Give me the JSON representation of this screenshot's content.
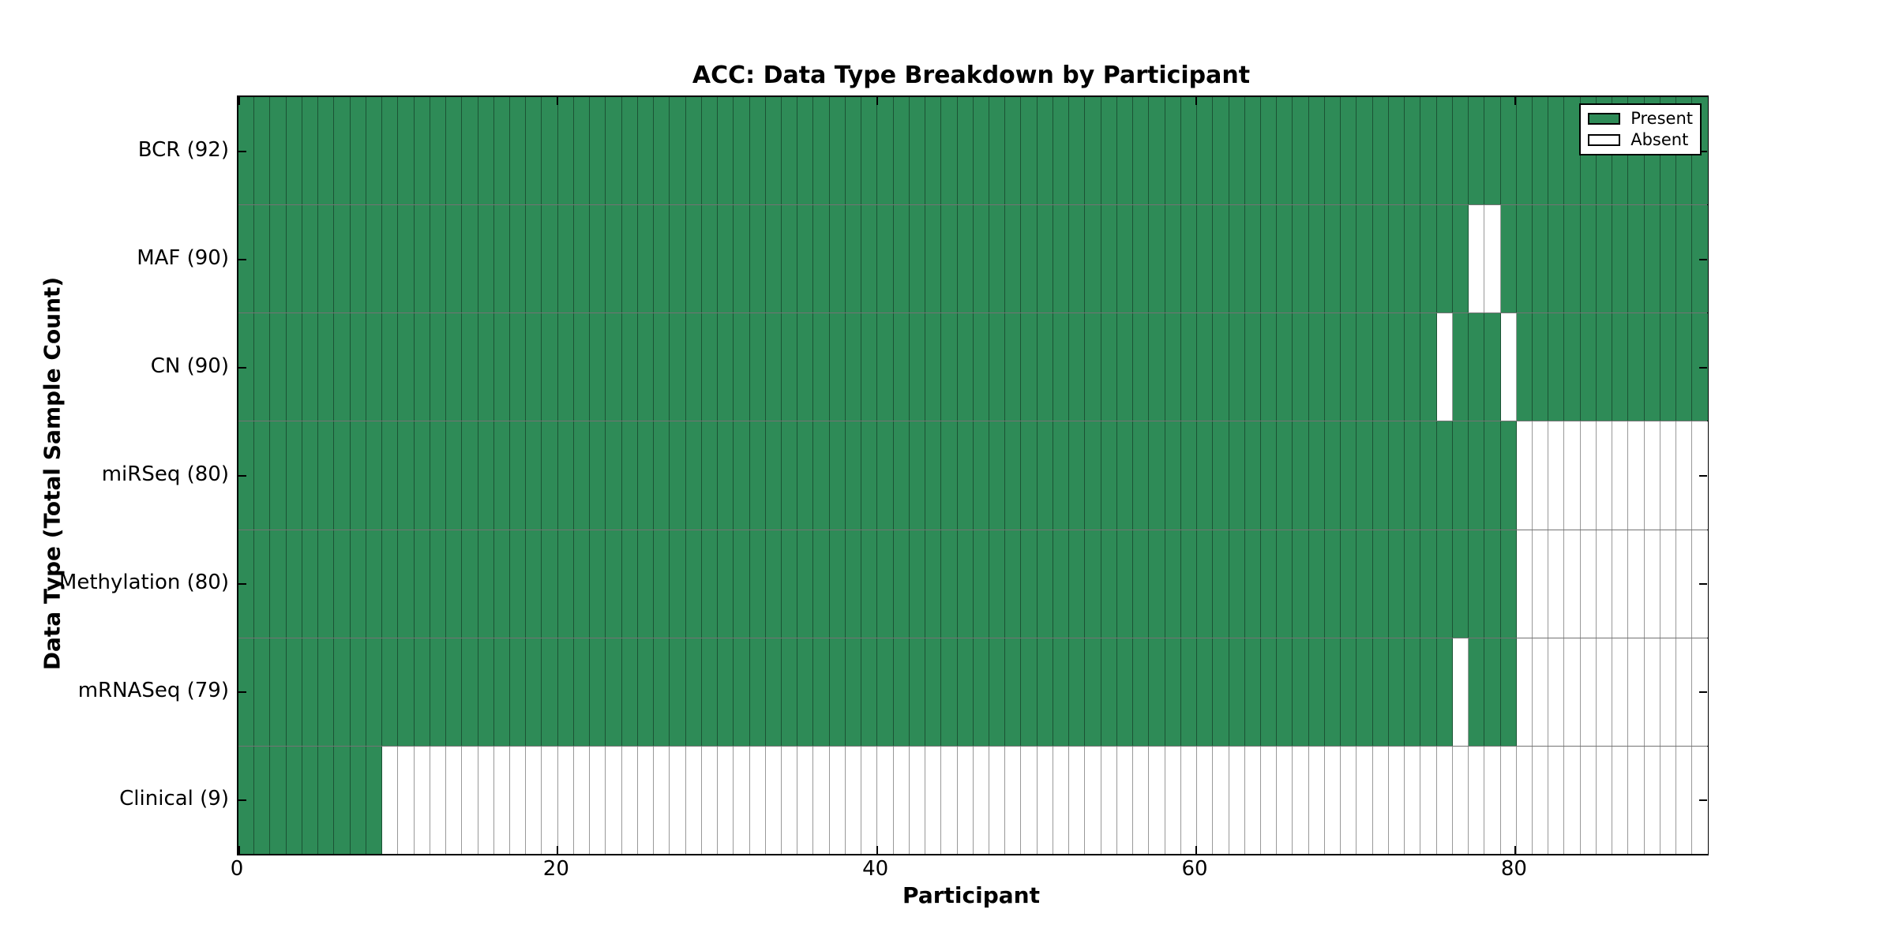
{
  "chart_data": {
    "type": "heatmap",
    "title": "ACC: Data Type Breakdown by Participant",
    "xlabel": "Participant",
    "ylabel": "Data Type (Total Sample Count)",
    "n_participants": 92,
    "x_ticks": [
      0,
      20,
      40,
      60,
      80
    ],
    "x_range": [
      0,
      92
    ],
    "grid": "off",
    "legend_position": "upper right",
    "colors": {
      "present": "#2e8b57",
      "absent": "#ffffff"
    },
    "legend": [
      {
        "label": "Present",
        "color": "#2e8b57"
      },
      {
        "label": "Absent",
        "color": "#ffffff"
      }
    ],
    "rows": [
      {
        "name": "BCR",
        "label": "BCR (92)",
        "total": 92,
        "absent_participants": []
      },
      {
        "name": "MAF",
        "label": "MAF (90)",
        "total": 90,
        "absent_participants": [
          77,
          78
        ]
      },
      {
        "name": "CN",
        "label": "CN (90)",
        "total": 90,
        "absent_participants": [
          75,
          79
        ]
      },
      {
        "name": "miRSeq",
        "label": "miRSeq (80)",
        "total": 80,
        "absent_participants": [
          80,
          81,
          82,
          83,
          84,
          85,
          86,
          87,
          88,
          89,
          90,
          91
        ]
      },
      {
        "name": "Methylation",
        "label": "Methylation (80)",
        "total": 80,
        "absent_participants": [
          80,
          81,
          82,
          83,
          84,
          85,
          86,
          87,
          88,
          89,
          90,
          91
        ]
      },
      {
        "name": "mRNASeq",
        "label": "mRNASeq (79)",
        "total": 79,
        "absent_participants": [
          76,
          80,
          81,
          82,
          83,
          84,
          85,
          86,
          87,
          88,
          89,
          90,
          91
        ]
      },
      {
        "name": "Clinical",
        "label": "Clinical (9)",
        "total": 9,
        "absent_participants": [
          9,
          10,
          11,
          12,
          13,
          14,
          15,
          16,
          17,
          18,
          19,
          20,
          21,
          22,
          23,
          24,
          25,
          26,
          27,
          28,
          29,
          30,
          31,
          32,
          33,
          34,
          35,
          36,
          37,
          38,
          39,
          40,
          41,
          42,
          43,
          44,
          45,
          46,
          47,
          48,
          49,
          50,
          51,
          52,
          53,
          54,
          55,
          56,
          57,
          58,
          59,
          60,
          61,
          62,
          63,
          64,
          65,
          66,
          67,
          68,
          69,
          70,
          71,
          72,
          73,
          74,
          75,
          76,
          77,
          78,
          79,
          80,
          81,
          82,
          83,
          84,
          85,
          86,
          87,
          88,
          89,
          90,
          91
        ]
      }
    ]
  }
}
